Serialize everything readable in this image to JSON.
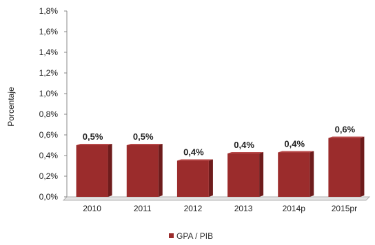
{
  "chart_data": {
    "type": "bar",
    "categories": [
      "2010",
      "2011",
      "2012",
      "2013",
      "2014p",
      "2015pr"
    ],
    "series": [
      {
        "name": "GPA / PIB",
        "values": [
          0.5,
          0.5,
          0.35,
          0.42,
          0.43,
          0.57
        ]
      }
    ],
    "data_labels": [
      "0,5%",
      "0,5%",
      "0,4%",
      "0,4%",
      "0,4%",
      "0,6%"
    ],
    "ylabel": "Porcentaje",
    "ylim": [
      0,
      1.8
    ],
    "yticks": [
      0,
      0.2,
      0.4,
      0.6,
      0.8,
      1.0,
      1.2,
      1.4,
      1.6,
      1.8
    ],
    "ytick_labels": [
      "0,0%",
      "0,2%",
      "0,4%",
      "0,6%",
      "0,8%",
      "1,0%",
      "1,2%",
      "1,4%",
      "1,6%",
      "1,8%"
    ],
    "grid": false,
    "legend": {
      "position": "bottom",
      "label": "GPA / PIB"
    },
    "colors": {
      "bar_front": "#9b2c2c",
      "bar_side": "#6e1c1c",
      "bar_top": "#b84a4a"
    }
  }
}
